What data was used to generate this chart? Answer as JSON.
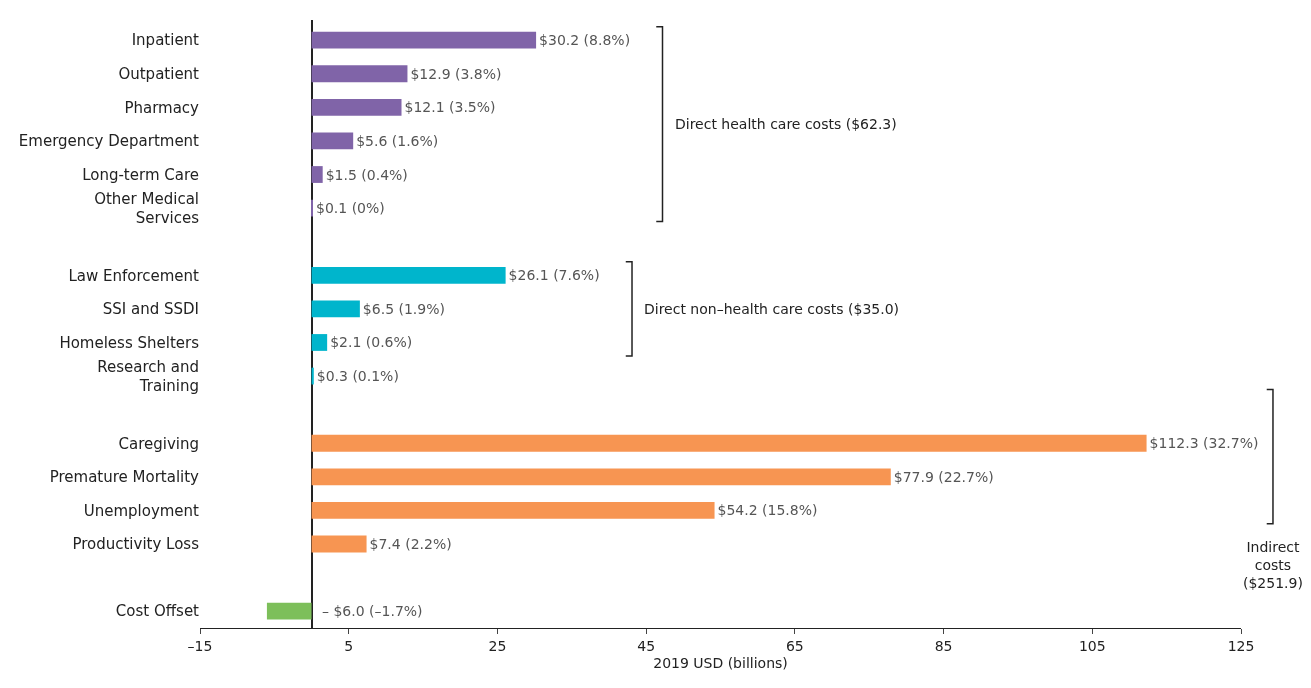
{
  "chart_data": {
    "type": "bar",
    "orientation": "horizontal",
    "xlabel": "2019 USD (billions)",
    "categories": [
      "Inpatient",
      "Outpatient",
      "Pharmacy",
      "Emergency Department",
      "Long-term Care",
      "Other Medical Services",
      null,
      "Law Enforcement",
      "SSI and SSDI",
      "Homeless Shelters",
      "Research and Training",
      null,
      "Caregiving",
      "Premature Mortality",
      "Unemployment",
      "Productivity Loss",
      null,
      "Cost Offset"
    ],
    "values": [
      30.2,
      12.9,
      12.1,
      5.6,
      1.5,
      0.1,
      null,
      26.1,
      6.5,
      2.1,
      0.3,
      null,
      112.3,
      77.9,
      54.2,
      7.4,
      null,
      -6.0
    ],
    "colors": [
      "#8064a8",
      "#8064a8",
      "#8064a8",
      "#8064a8",
      "#8064a8",
      "#8064a8",
      null,
      "#00b5cc",
      "#00b5cc",
      "#00b5cc",
      "#00b5cc",
      null,
      "#f79552",
      "#f79552",
      "#f79552",
      "#f79552",
      null,
      "#7dbf5a"
    ],
    "value_labels": [
      "$30.2 (8.8%)",
      "$12.9 (3.8%)",
      "$12.1 (3.5%)",
      "$5.6 (1.6%)",
      "$1.5 (0.4%)",
      "$0.1 (0%)",
      null,
      "$26.1 (7.6%)",
      "$6.5 (1.9%)",
      "$2.1 (0.6%)",
      "$0.3 (0.1%)",
      null,
      "$112.3 (32.7%)",
      "$77.9 (22.7%)",
      "$54.2 (15.8%)",
      "$7.4 (2.2%)",
      null,
      "– $6.0 (–1.7%)"
    ],
    "xlim": [
      -15,
      125
    ],
    "xticks": [
      {
        "value": -15,
        "label": "–15"
      },
      5,
      25,
      45,
      65,
      85,
      105,
      125
    ],
    "annotations": [
      "Direct health care costs ($62.3)",
      "Direct non–health care costs ($35.0)",
      "Indirect costs ($251.9)"
    ]
  }
}
